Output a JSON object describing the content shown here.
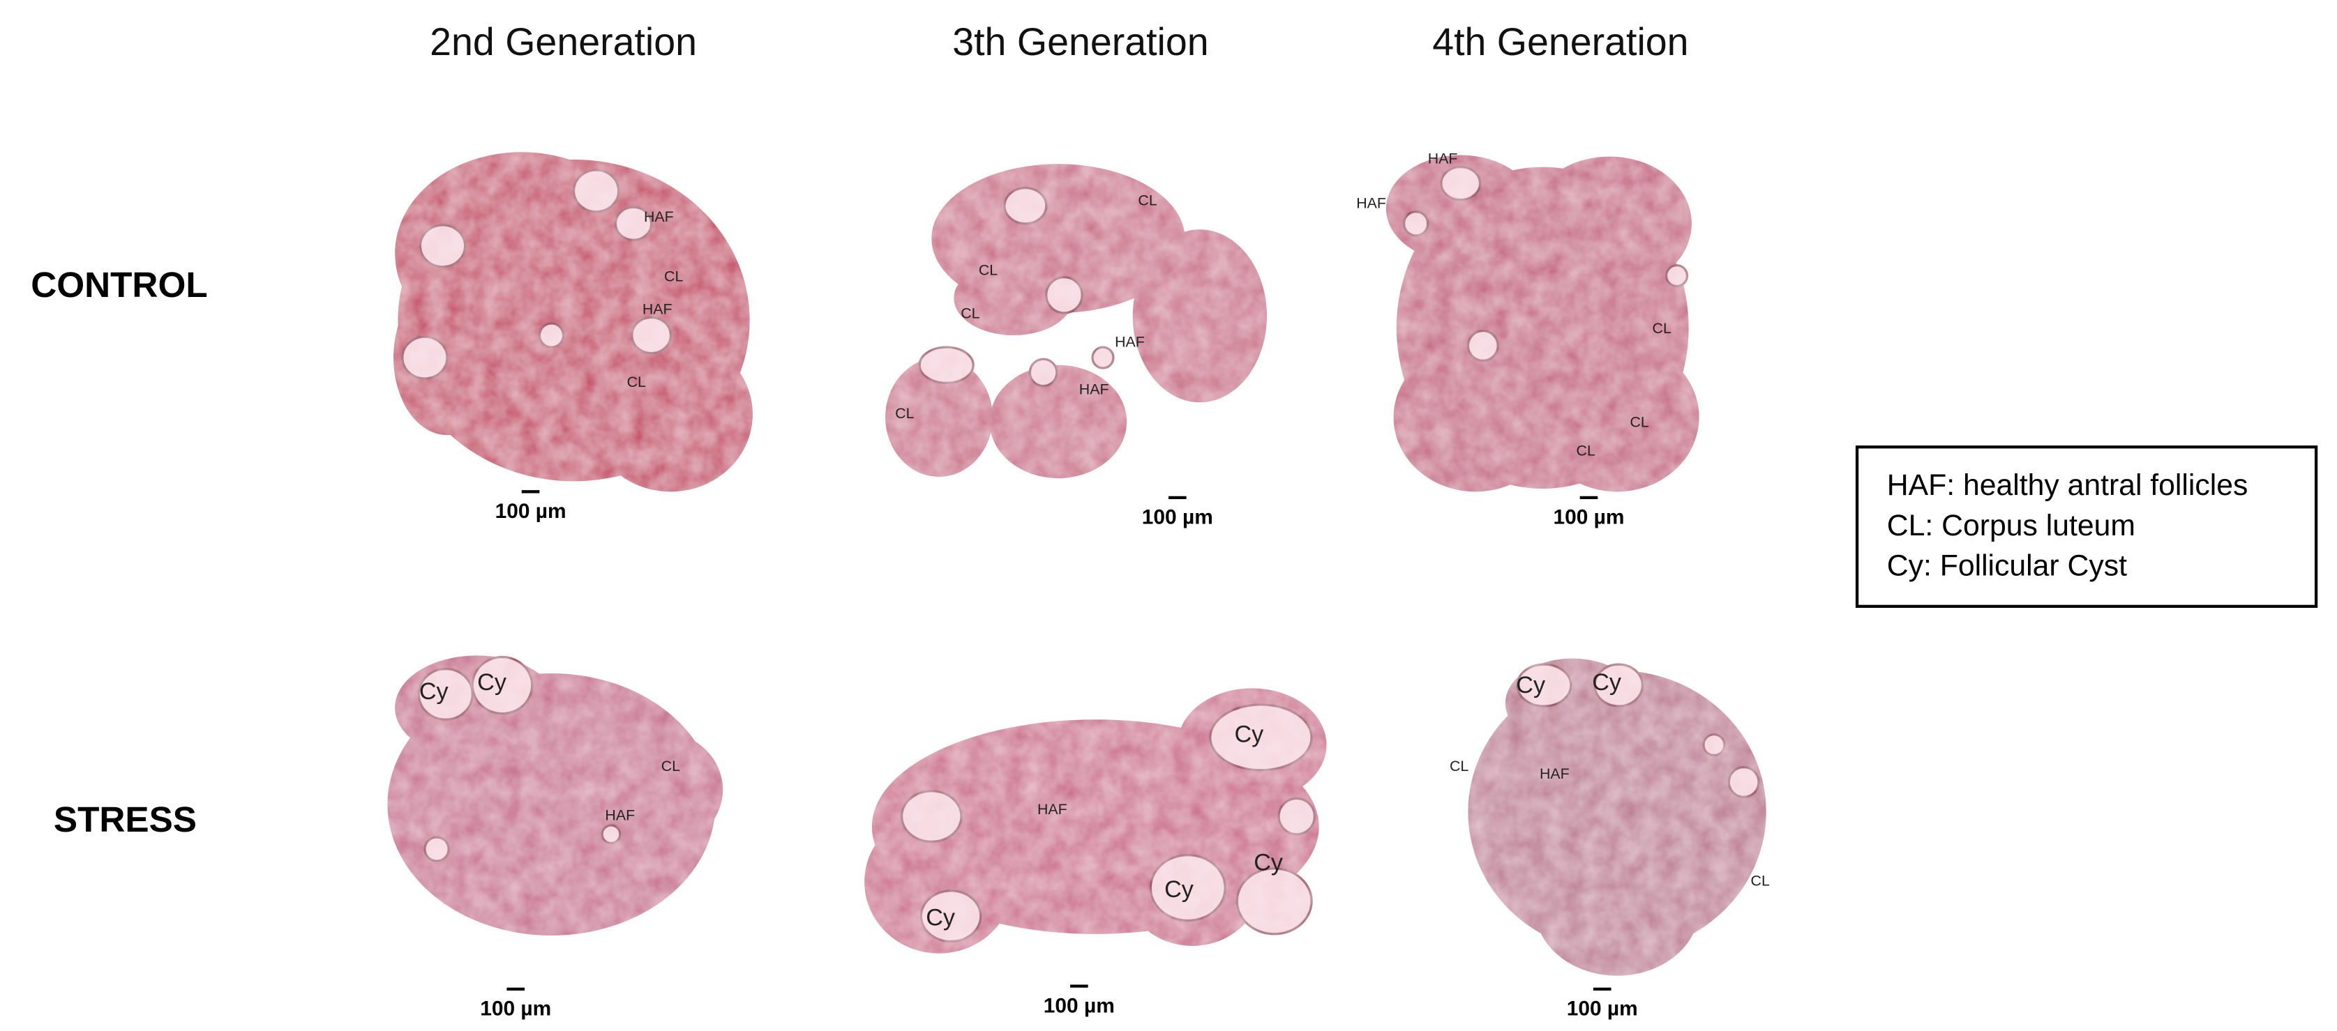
{
  "columns": [
    "2nd Generation",
    "3th Generation",
    "4th Generation"
  ],
  "rows": [
    "CONTROL",
    "STRESS"
  ],
  "panels": [
    {
      "labels": [
        "HAF",
        "CL",
        "HAF",
        "CL"
      ],
      "scale_bar": "100 µm"
    },
    {
      "labels": [
        "CL",
        "CL",
        "CL",
        "HAF",
        "HAF",
        "CL"
      ],
      "scale_bar": "100 µm"
    },
    {
      "labels": [
        "HAF",
        "HAF",
        "CL",
        "CL",
        "CL"
      ],
      "scale_bar": "100 µm"
    },
    {
      "labels": [
        "Cy",
        "Cy",
        "CL",
        "HAF"
      ],
      "scale_bar": "100 µm"
    },
    {
      "labels": [
        "Cy",
        "HAF",
        "Cy",
        "Cy",
        "Cy"
      ],
      "scale_bar": "100 µm"
    },
    {
      "labels": [
        "Cy",
        "Cy",
        "CL",
        "HAF",
        "CL"
      ],
      "scale_bar": "100 µm"
    }
  ],
  "legend": [
    "HAF: healthy antral follicles",
    "CL: Corpus luteum",
    "Cy: Follicular Cyst"
  ]
}
